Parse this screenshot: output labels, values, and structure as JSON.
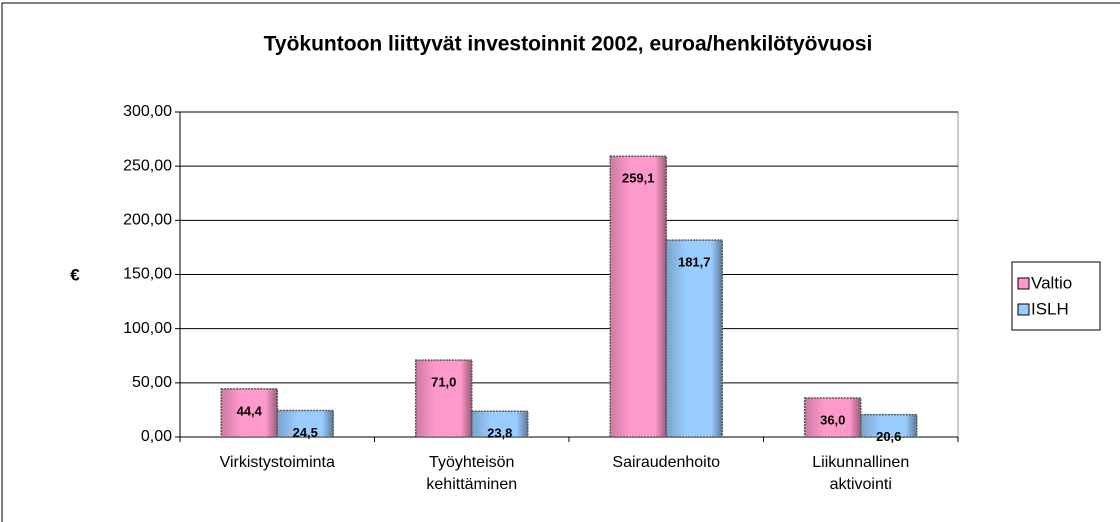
{
  "chart_data": {
    "type": "bar",
    "title": "Työkuntoon liittyvät investoinnit 2002, euroa/henkilötyövuosi",
    "ylabel": "€",
    "categories": [
      "Virkistystoiminta",
      "Työyhteisön kehittäminen",
      "Sairaudenhoito",
      "Liikunnallinen aktivointi"
    ],
    "series": [
      {
        "name": "Valtio",
        "color": "#ff99cc",
        "values": [
          44.4,
          71.0,
          259.1,
          36.0
        ],
        "value_labels": [
          "44,4",
          "71,0",
          "259,1",
          "36,0"
        ]
      },
      {
        "name": "ISLH",
        "color": "#99ccff",
        "values": [
          24.5,
          23.8,
          181.7,
          20.6
        ],
        "value_labels": [
          "24,5",
          "23,8",
          "181,7",
          "20,6"
        ]
      }
    ],
    "ylim": [
      0,
      300
    ],
    "yticks": [
      {
        "value": 0,
        "label": "0,00"
      },
      {
        "value": 50,
        "label": "50,00"
      },
      {
        "value": 100,
        "label": "100,00"
      },
      {
        "value": 150,
        "label": "150,00"
      },
      {
        "value": 200,
        "label": "200,00"
      },
      {
        "value": 250,
        "label": "250,00"
      },
      {
        "value": 300,
        "label": "300,00"
      }
    ],
    "grid": true,
    "legend": "right"
  }
}
